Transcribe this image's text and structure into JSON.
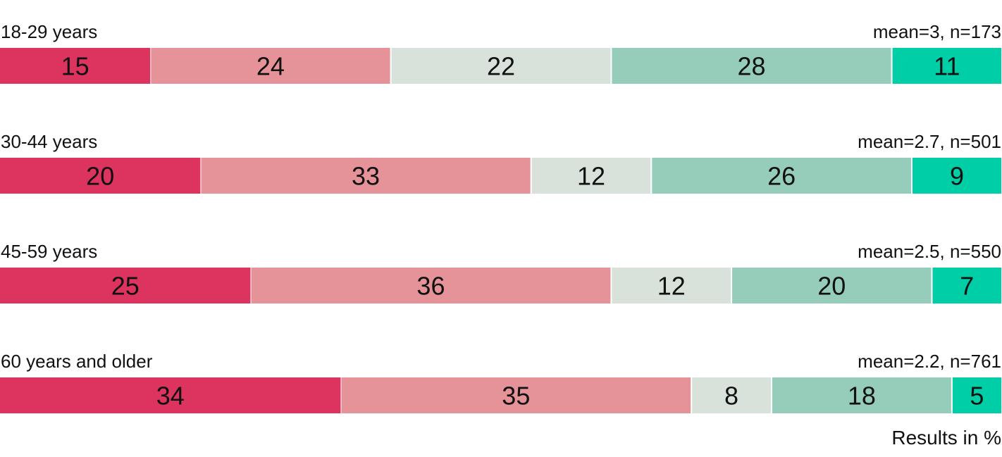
{
  "chart_data": {
    "type": "bar",
    "orientation": "horizontal",
    "stacked": true,
    "grid": false,
    "xlim": [
      0,
      100
    ],
    "categories": [
      "18-29 years",
      "30-44 years",
      "45-59 years",
      "60 years and older"
    ],
    "annotations": [
      "mean=3, n=173",
      "mean=2.7, n=501",
      "mean=2.5, n=550",
      "mean=2.2, n=761"
    ],
    "values": [
      [
        15,
        24,
        22,
        28,
        11
      ],
      [
        20,
        33,
        12,
        26,
        9
      ],
      [
        25,
        36,
        12,
        20,
        7
      ],
      [
        34,
        35,
        8,
        18,
        5
      ]
    ],
    "segment_colors": [
      "#dc335f",
      "#e59299",
      "#d9e2da",
      "#96cdba",
      "#00cea6"
    ],
    "footnote": "Results in %"
  }
}
